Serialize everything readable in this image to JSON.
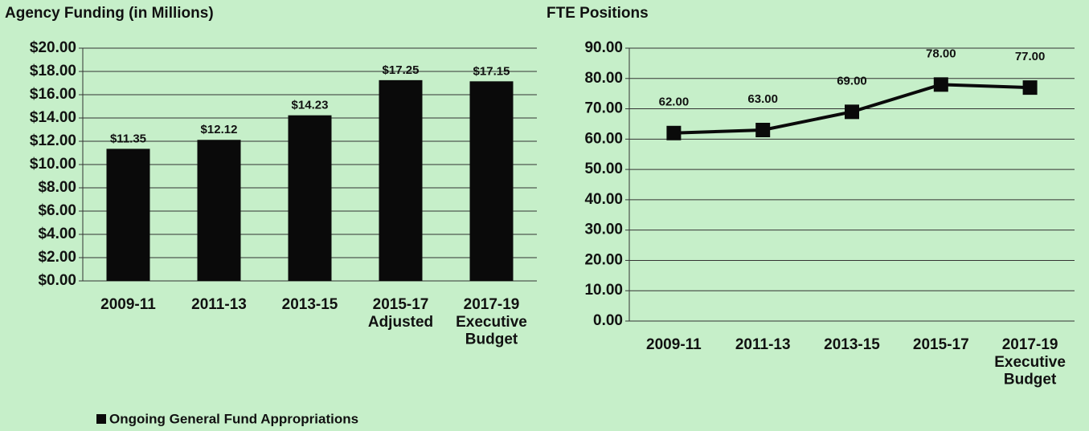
{
  "chart_data": [
    {
      "type": "bar",
      "title": "Agency Funding (in Millions)",
      "categories": [
        "2009-11",
        "2011-13",
        "2013-15",
        "2015-17\nAdjusted",
        "2017-19\nExecutive\nBudget"
      ],
      "series": [
        {
          "name": "Ongoing General Fund Appropriations",
          "color": "#0a0a0a",
          "values": [
            11.35,
            12.12,
            14.23,
            17.25,
            17.15
          ],
          "value_labels": [
            "$11.35",
            "$12.12",
            "$14.23",
            "$17.25",
            "$17.15"
          ]
        }
      ],
      "ylim": [
        0,
        20
      ],
      "yticks": [
        {
          "value": 0,
          "label": "$0.00"
        },
        {
          "value": 2,
          "label": "$2.00"
        },
        {
          "value": 4,
          "label": "$4.00"
        },
        {
          "value": 6,
          "label": "$6.00"
        },
        {
          "value": 8,
          "label": "$8.00"
        },
        {
          "value": 10,
          "label": "$10.00"
        },
        {
          "value": 12,
          "label": "$12.00"
        },
        {
          "value": 14,
          "label": "$14.00"
        },
        {
          "value": 16,
          "label": "$16.00"
        },
        {
          "value": 18,
          "label": "$18.00"
        },
        {
          "value": 20,
          "label": "$20.00"
        }
      ],
      "grid": true,
      "legend": "bottom-left"
    },
    {
      "type": "line",
      "title": "FTE Positions",
      "categories": [
        "2009-11",
        "2011-13",
        "2013-15",
        "2015-17",
        "2017-19\nExecutive\nBudget"
      ],
      "series": [
        {
          "name": "FTE Positions",
          "color": "#0a0a0a",
          "values": [
            62,
            63,
            69,
            78,
            77
          ],
          "value_labels": [
            "62.00",
            "63.00",
            "69.00",
            "78.00",
            "77.00"
          ]
        }
      ],
      "ylim": [
        0,
        90
      ],
      "yticks": [
        {
          "value": 0,
          "label": "0.00"
        },
        {
          "value": 10,
          "label": "10.00"
        },
        {
          "value": 20,
          "label": "20.00"
        },
        {
          "value": 30,
          "label": "30.00"
        },
        {
          "value": 40,
          "label": "40.00"
        },
        {
          "value": 50,
          "label": "50.00"
        },
        {
          "value": 60,
          "label": "60.00"
        },
        {
          "value": 70,
          "label": "70.00"
        },
        {
          "value": 80,
          "label": "80.00"
        },
        {
          "value": 90,
          "label": "90.00"
        }
      ],
      "grid": true
    }
  ]
}
